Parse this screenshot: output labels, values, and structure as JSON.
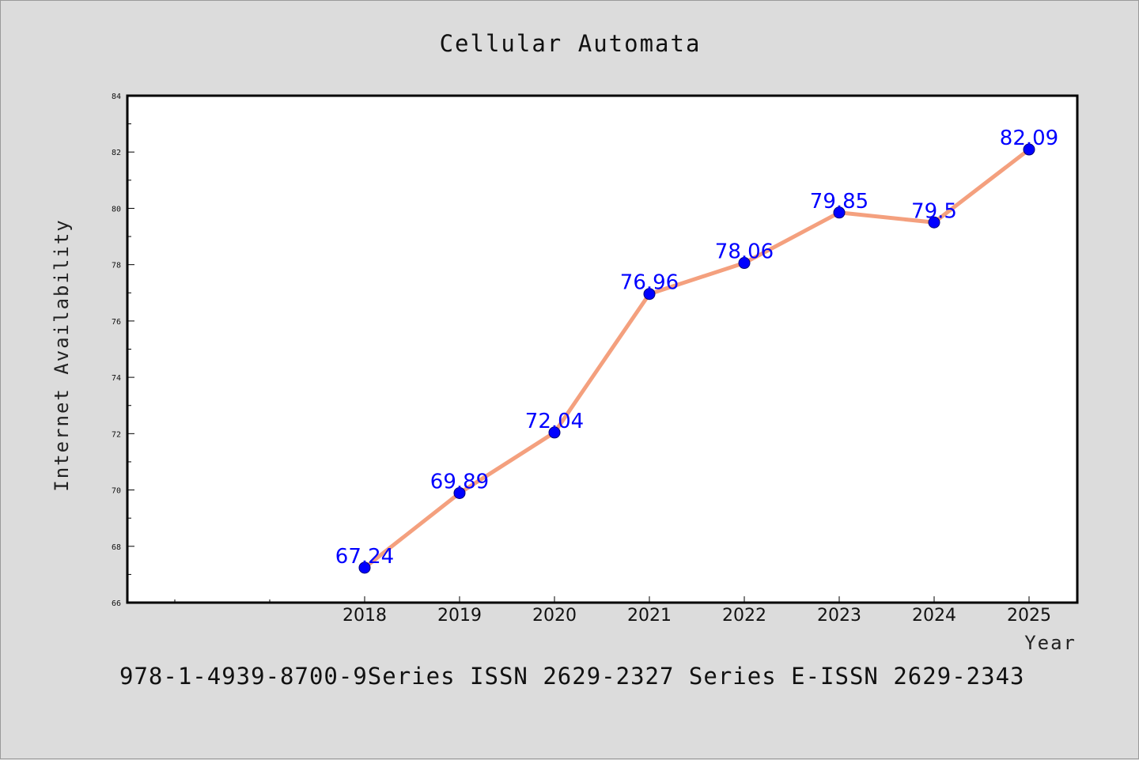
{
  "chart_data": {
    "type": "line",
    "title": "Cellular Automata",
    "xlabel": "Year",
    "ylabel": "Internet Availability",
    "x": [
      "2018",
      "2019",
      "2020",
      "2021",
      "2022",
      "2023",
      "2024",
      "2025"
    ],
    "series": [
      {
        "values": [
          67.24,
          69.89,
          72.04,
          76.96,
          78.06,
          79.85,
          79.5,
          82.09
        ],
        "labels": [
          "67.24",
          "69.89",
          "72.04",
          "76.96",
          "78.06",
          "79.85",
          "79.5",
          "82.09"
        ],
        "line_color": "#f4a07e",
        "marker_color": "#0000ff"
      }
    ],
    "ylim": [
      66,
      84
    ],
    "yticks": [
      "66",
      "68",
      "70",
      "72",
      "74",
      "76",
      "78",
      "80",
      "82",
      "84"
    ],
    "grid": false,
    "legend": "none"
  },
  "footer": "978-1-4939-8700-9Series ISSN 2629-2327 Series E-ISSN 2629-2343"
}
